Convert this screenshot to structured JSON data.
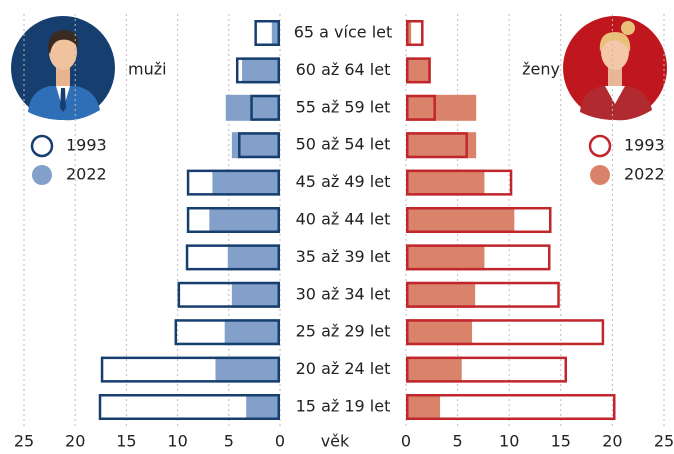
{
  "chart_data": {
    "type": "pyramid",
    "categories": [
      "65 a více let",
      "60 až 64 let",
      "55 až 59 let",
      "50 až 54 let",
      "45 až 49 let",
      "40 až 44 let",
      "35 až 39 let",
      "30 až 34 let",
      "25 až 29 let",
      "20 až 24 let",
      "15 až 19 let"
    ],
    "xlabel": "věk",
    "xlim": [
      0,
      25
    ],
    "xticks": [
      0,
      5,
      10,
      15,
      20,
      25
    ],
    "grid": true,
    "left": {
      "label": "muži",
      "series": [
        {
          "name": "1993",
          "color": "#163e6e",
          "style": "outline",
          "values": [
            2.5,
            4.3,
            2.9,
            4.1,
            9.1,
            9.1,
            9.2,
            10.0,
            10.3,
            17.5,
            17.7
          ]
        },
        {
          "name": "2022",
          "color": "#82a0c9",
          "style": "fill",
          "values": [
            0.8,
            3.7,
            5.3,
            4.7,
            6.6,
            6.9,
            5.1,
            4.7,
            5.4,
            6.3,
            3.3
          ]
        }
      ]
    },
    "right": {
      "label": "ženy",
      "series": [
        {
          "name": "1993",
          "color": "#c0262b",
          "style": "outline",
          "values": [
            1.7,
            2.4,
            2.9,
            6.0,
            10.3,
            14.1,
            14.0,
            14.9,
            19.2,
            15.6,
            20.3
          ]
        },
        {
          "name": "2022",
          "color": "#da836b",
          "style": "fill",
          "values": [
            0.5,
            2.4,
            6.8,
            6.8,
            7.6,
            10.5,
            7.6,
            6.7,
            6.4,
            5.4,
            3.3
          ]
        }
      ]
    }
  }
}
